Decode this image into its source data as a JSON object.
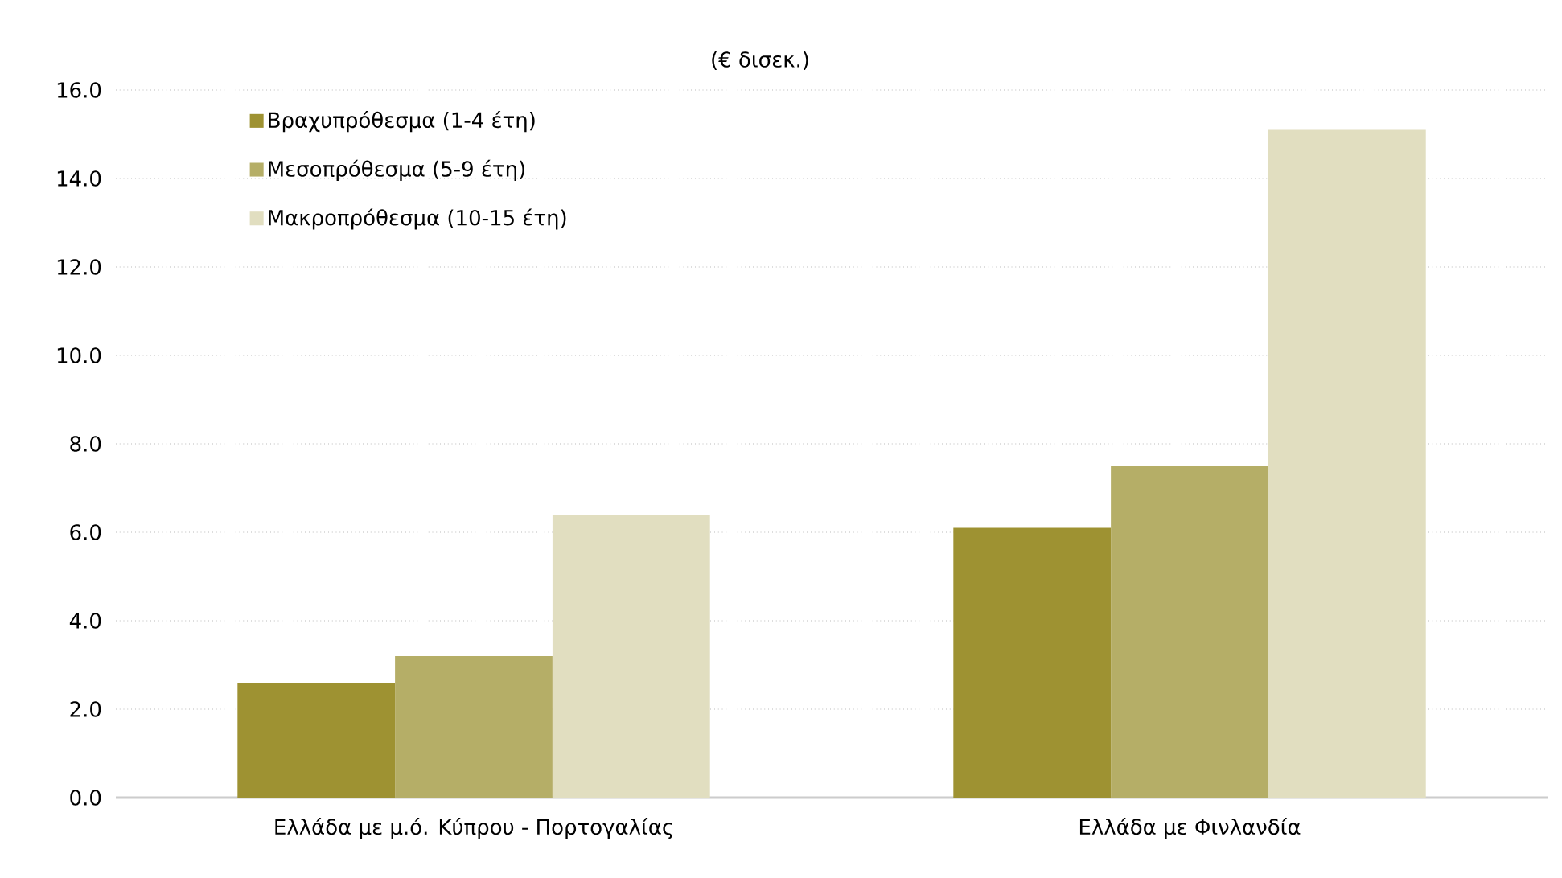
{
  "chart_data": {
    "type": "bar",
    "title": "(€ δισεκ.)",
    "categories": [
      "Ελλάδα με μ.ό. Κύπρου - Πορτογαλίας",
      "Ελλάδα με Φινλανδία"
    ],
    "series": [
      {
        "name": "Βραχυπρόθεσμα (1-4 έτη)",
        "color": "#9e9232",
        "values": [
          2.6,
          6.1
        ]
      },
      {
        "name": "Μεσοπρόθεσμα (5-9 έτη)",
        "color": "#b5ae67",
        "values": [
          3.2,
          7.5
        ]
      },
      {
        "name": "Μακροπρόθεσμα (10-15 έτη)",
        "color": "#e1dec0",
        "values": [
          6.4,
          15.1
        ]
      }
    ],
    "ylim": [
      0,
      16
    ],
    "yticks": [
      {
        "value": 0,
        "label": "0.0"
      },
      {
        "value": 2,
        "label": "2.0"
      },
      {
        "value": 4,
        "label": "4.0"
      },
      {
        "value": 6,
        "label": "6.0"
      },
      {
        "value": 8,
        "label": "8.0"
      },
      {
        "value": 10,
        "label": "10.0"
      },
      {
        "value": 12,
        "label": "12.0"
      },
      {
        "value": 14,
        "label": "14.0"
      },
      {
        "value": 16,
        "label": "16.0"
      }
    ],
    "grid": "y",
    "legend": "top left"
  }
}
